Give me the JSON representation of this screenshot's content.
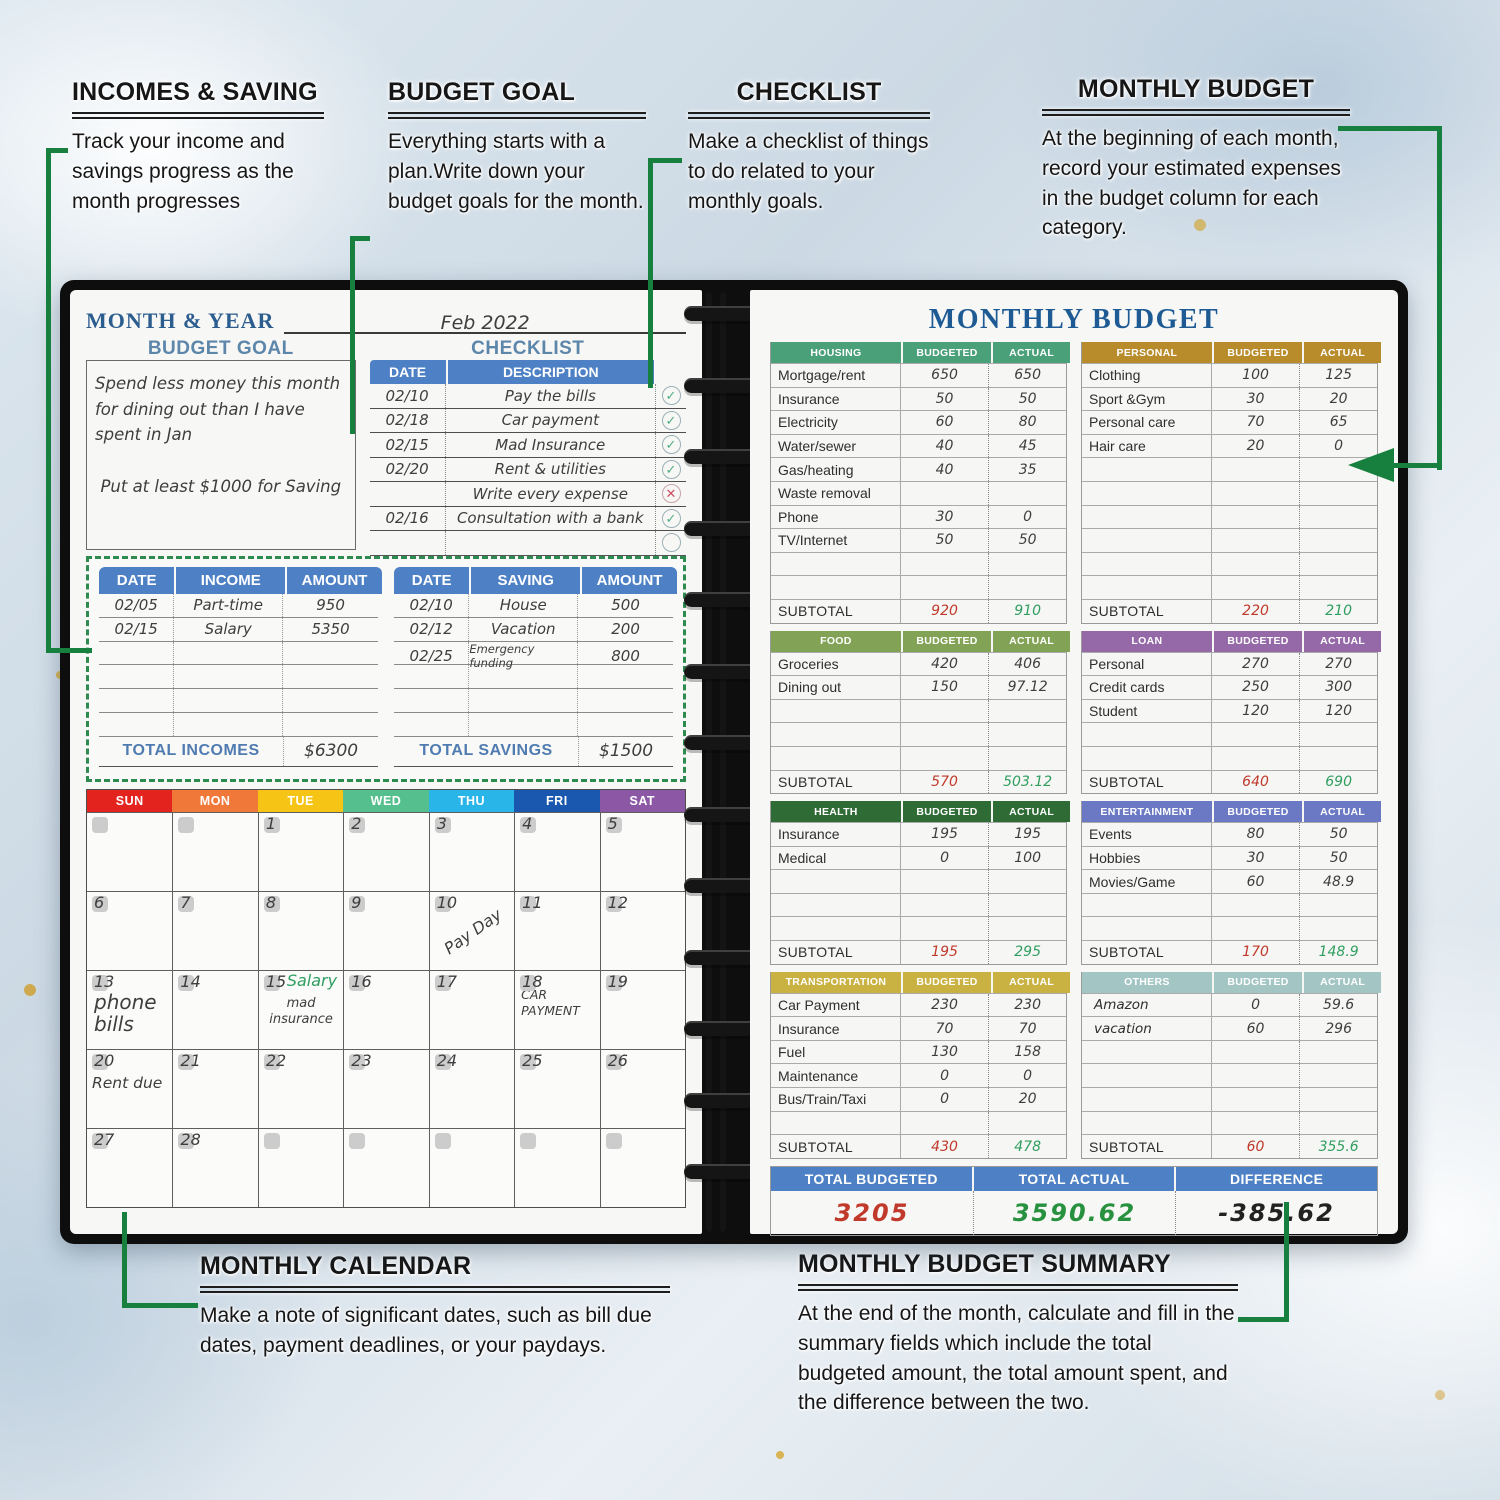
{
  "colors": {
    "accent_green": "#17803e",
    "header_blue": "#4d80c4",
    "title_blue": "#1e5b94",
    "subtotal_red": "#c0392b",
    "subtotal_green": "#2f9e5f"
  },
  "callouts": {
    "incomes_saving": {
      "title": "INCOMES & SAVING",
      "body": "Track your income and savings progress as the month progresses"
    },
    "budget_goal": {
      "title": "BUDGET GOAL",
      "body": "Everything starts with a plan.Write down your budget goals for the month."
    },
    "checklist": {
      "title": "CHECKLIST",
      "body": "Make a checklist of things to do related to your monthly goals."
    },
    "monthly_budget": {
      "title": "MONTHLY BUDGET",
      "body": "At the beginning of each month, record your estimated expenses in the budget column for each category."
    },
    "monthly_calendar": {
      "title": "MONTHLY CALENDAR",
      "body": "Make a note of significant dates, such as bill due dates, payment deadlines, or your paydays."
    },
    "monthly_budget_summary": {
      "title": "MONTHLY BUDGET SUMMARY",
      "body": "At the end of the month, calculate and fill in the summary fields which include the total budgeted amount, the total amount spent, and the difference between the two."
    }
  },
  "left_page": {
    "month_year_label": "MONTH & YEAR",
    "month_year_value": "Feb 2022",
    "budget_goal": {
      "title": "BUDGET GOAL",
      "lines": [
        "Spend less money this month for dining out than I have spent in Jan",
        "Put at least $1000 for Saving"
      ]
    },
    "checklist": {
      "title": "CHECKLIST",
      "headers": [
        "DATE",
        "DESCRIPTION"
      ],
      "rows": [
        {
          "date": "02/10",
          "desc": "Pay the bills",
          "status": "check"
        },
        {
          "date": "02/18",
          "desc": "Car payment",
          "status": "check"
        },
        {
          "date": "02/15",
          "desc": "Mad Insurance",
          "status": "check"
        },
        {
          "date": "02/20",
          "desc": "Rent & utilities",
          "status": "check"
        },
        {
          "date": "",
          "desc": "Write every expense",
          "status": "cross"
        },
        {
          "date": "02/16",
          "desc": "Consultation with a bank",
          "status": "check"
        },
        {
          "date": "",
          "desc": "",
          "status": "empty"
        }
      ]
    },
    "income": {
      "headers": [
        "DATE",
        "INCOME",
        "AMOUNT"
      ],
      "rows": [
        [
          "02/05",
          "Part-time",
          "950"
        ],
        [
          "02/15",
          "Salary",
          "5350"
        ],
        [
          "",
          "",
          ""
        ],
        [
          "",
          "",
          ""
        ],
        [
          "",
          "",
          ""
        ],
        [
          "",
          "",
          ""
        ]
      ],
      "total_label": "TOTAL INCOMES",
      "total_value": "$6300"
    },
    "saving": {
      "headers": [
        "DATE",
        "SAVING",
        "AMOUNT"
      ],
      "rows": [
        [
          "02/10",
          "House",
          "500"
        ],
        [
          "02/12",
          "Vacation",
          "200"
        ],
        [
          "02/25",
          "Emergency funding",
          "800"
        ],
        [
          "",
          "",
          ""
        ],
        [
          "",
          "",
          ""
        ],
        [
          "",
          "",
          ""
        ]
      ],
      "total_label": "TOTAL SAVINGS",
      "total_value": "$1500"
    },
    "calendar": {
      "weekdays": [
        {
          "label": "SUN",
          "color": "#e3231d"
        },
        {
          "label": "MON",
          "color": "#f0793a"
        },
        {
          "label": "TUE",
          "color": "#f5c414"
        },
        {
          "label": "WED",
          "color": "#55c08d"
        },
        {
          "label": "THU",
          "color": "#2ab5e8"
        },
        {
          "label": "FRI",
          "color": "#1a57ae"
        },
        {
          "label": "SAT",
          "color": "#8c57a5"
        }
      ],
      "weeks": [
        [
          {
            "day": ""
          },
          {
            "day": ""
          },
          {
            "day": "1"
          },
          {
            "day": "2"
          },
          {
            "day": "3"
          },
          {
            "day": "4"
          },
          {
            "day": "5"
          }
        ],
        [
          {
            "day": "6"
          },
          {
            "day": "7"
          },
          {
            "day": "8"
          },
          {
            "day": "9"
          },
          {
            "day": "10",
            "notes": [
              {
                "text": "Pay Day",
                "style": "rot"
              }
            ]
          },
          {
            "day": "11"
          },
          {
            "day": "12"
          }
        ],
        [
          {
            "day": "13",
            "notes": [
              {
                "text": "phone bills",
                "style": "lg"
              }
            ]
          },
          {
            "day": "14"
          },
          {
            "day": "15",
            "notes": [
              {
                "text": "Salary",
                "style": "green"
              },
              {
                "text": "mad insurance",
                "style": "smc"
              }
            ]
          },
          {
            "day": "16"
          },
          {
            "day": "17"
          },
          {
            "day": "18",
            "notes": [
              {
                "text": "CAR PAYMENT",
                "style": "caps"
              }
            ]
          },
          {
            "day": "19"
          }
        ],
        [
          {
            "day": "20",
            "notes": [
              {
                "text": "Rent due",
                "style": "plain"
              }
            ]
          },
          {
            "day": "21"
          },
          {
            "day": "22"
          },
          {
            "day": "23"
          },
          {
            "day": "24"
          },
          {
            "day": "25"
          },
          {
            "day": "26"
          }
        ],
        [
          {
            "day": "27"
          },
          {
            "day": "28"
          },
          {
            "day": ""
          },
          {
            "day": ""
          },
          {
            "day": ""
          },
          {
            "day": ""
          },
          {
            "day": ""
          }
        ]
      ]
    }
  },
  "right_page": {
    "title": "MONTHLY BUDGET",
    "column_headers": [
      "BUDGETED",
      "ACTUAL"
    ],
    "subtotal_label": "SUBTOTAL",
    "tables": [
      {
        "category": "HOUSING",
        "color": "#4aa079",
        "rows": [
          [
            "Mortgage/rent",
            "650",
            "650"
          ],
          [
            "Insurance",
            "50",
            "50"
          ],
          [
            "Electricity",
            "60",
            "80"
          ],
          [
            "Water/sewer",
            "40",
            "45"
          ],
          [
            "Gas/heating",
            "40",
            "35"
          ],
          [
            "Waste removal",
            "",
            ""
          ],
          [
            "Phone",
            "30",
            "0"
          ],
          [
            "TV/Internet",
            "50",
            "50"
          ],
          [
            "",
            "",
            ""
          ],
          [
            "",
            "",
            ""
          ]
        ],
        "subtotal": [
          "920",
          "910"
        ]
      },
      {
        "category": "PERSONAL",
        "color": "#b98c2b",
        "rows": [
          [
            "Clothing",
            "100",
            "125"
          ],
          [
            "Sport &Gym",
            "30",
            "20"
          ],
          [
            "Personal care",
            "70",
            "65"
          ],
          [
            "Hair care",
            "20",
            "0"
          ],
          [
            "",
            "",
            ""
          ],
          [
            "",
            "",
            ""
          ],
          [
            "",
            "",
            ""
          ],
          [
            "",
            "",
            ""
          ],
          [
            "",
            "",
            ""
          ],
          [
            "",
            "",
            ""
          ]
        ],
        "subtotal": [
          "220",
          "210"
        ]
      },
      {
        "category": "FOOD",
        "color": "#82a356",
        "rows": [
          [
            "Groceries",
            "420",
            "406"
          ],
          [
            "Dining out",
            "150",
            "97.12"
          ],
          [
            "",
            "",
            ""
          ],
          [
            "",
            "",
            ""
          ],
          [
            "",
            "",
            ""
          ]
        ],
        "subtotal": [
          "570",
          "503.12"
        ]
      },
      {
        "category": "LOAN",
        "color": "#9569a8",
        "rows": [
          [
            "Personal",
            "270",
            "270"
          ],
          [
            "Credit cards",
            "250",
            "300"
          ],
          [
            "Student",
            "120",
            "120"
          ],
          [
            "",
            "",
            ""
          ],
          [
            "",
            "",
            ""
          ]
        ],
        "subtotal": [
          "640",
          "690"
        ]
      },
      {
        "category": "HEALTH",
        "color": "#2e6b35",
        "rows": [
          [
            "Insurance",
            "195",
            "195"
          ],
          [
            "Medical",
            "0",
            "100"
          ],
          [
            "",
            "",
            ""
          ],
          [
            "",
            "",
            ""
          ],
          [
            "",
            "",
            ""
          ]
        ],
        "subtotal": [
          "195",
          "295"
        ]
      },
      {
        "category": "ENTERTAINMENT",
        "color": "#6b79c5",
        "rows": [
          [
            "Events",
            "80",
            "50"
          ],
          [
            "Hobbies",
            "30",
            "50"
          ],
          [
            "Movies/Game",
            "60",
            "48.9"
          ],
          [
            "",
            "",
            ""
          ],
          [
            "",
            "",
            ""
          ]
        ],
        "subtotal": [
          "170",
          "148.9"
        ]
      },
      {
        "category": "TRANSPORTATION",
        "color": "#c9b242",
        "rows": [
          [
            "Car Payment",
            "230",
            "230"
          ],
          [
            "Insurance",
            "70",
            "70"
          ],
          [
            "Fuel",
            "130",
            "158"
          ],
          [
            "Maintenance",
            "0",
            "0"
          ],
          [
            "Bus/Train/Taxi",
            "0",
            "20"
          ],
          [
            "",
            "",
            ""
          ]
        ],
        "subtotal": [
          "430",
          "478"
        ]
      },
      {
        "category": "OTHERS",
        "color": "#a3c6c4",
        "handwritten_names": true,
        "rows": [
          [
            "Amazon",
            "0",
            "59.6"
          ],
          [
            "vacation",
            "60",
            "296"
          ],
          [
            "",
            "",
            ""
          ],
          [
            "",
            "",
            ""
          ],
          [
            "",
            "",
            ""
          ],
          [
            "",
            "",
            ""
          ]
        ],
        "subtotal": [
          "60",
          "355.6"
        ]
      }
    ],
    "totals": {
      "headers": [
        "TOTAL BUDGETED",
        "TOTAL ACTUAL",
        "DIFFERENCE"
      ],
      "values": [
        {
          "text": "3205",
          "tone": "red"
        },
        {
          "text": "3590.62",
          "tone": "green"
        },
        {
          "text": "-385.62",
          "tone": "dark"
        }
      ]
    }
  }
}
